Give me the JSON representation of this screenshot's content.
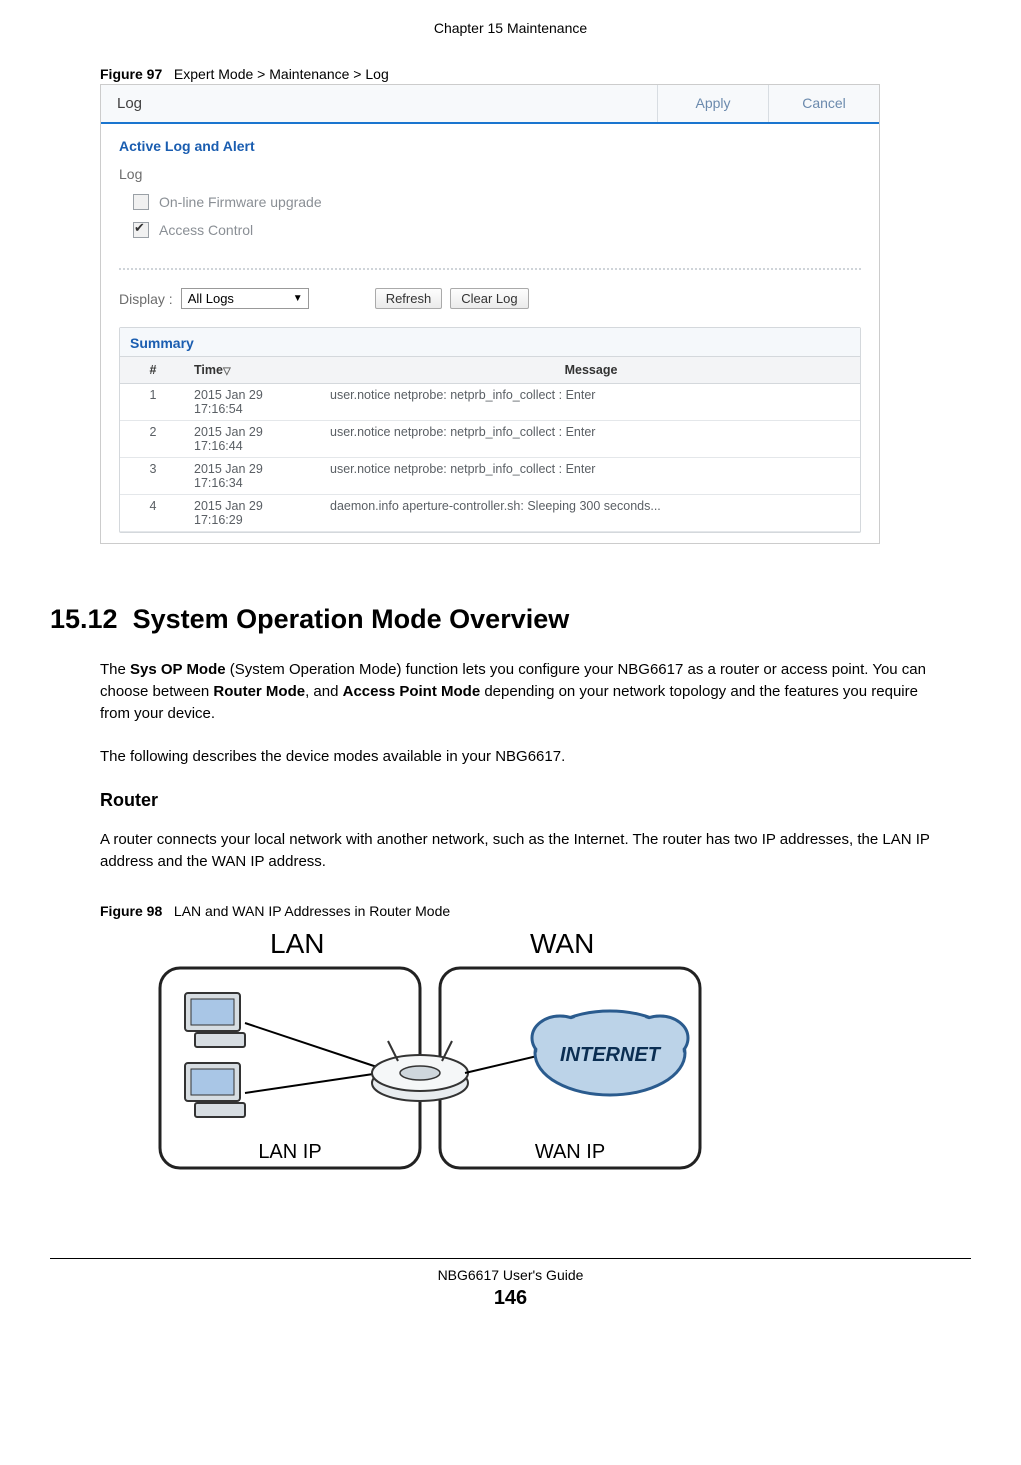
{
  "chapter_header": "Chapter 15 Maintenance",
  "figure97": {
    "label": "Figure 97",
    "caption": "Expert Mode > Maintenance > Log"
  },
  "screenshot": {
    "title": "Log",
    "apply": "Apply",
    "cancel": "Cancel",
    "section_title": "Active Log and Alert",
    "log_label": "Log",
    "check1": {
      "label": "On-line Firmware upgrade",
      "checked": false
    },
    "check2": {
      "label": "Access Control",
      "checked": true
    },
    "display_label": "Display :",
    "select_value": "All Logs",
    "refresh": "Refresh",
    "clear_log": "Clear Log",
    "summary_label": "Summary",
    "columns": {
      "num": "#",
      "time": "Time",
      "msg": "Message"
    },
    "rows": [
      {
        "num": "1",
        "time": "2015 Jan 29 17:16:54",
        "msg": "user.notice netprobe: netprb_info_collect : Enter"
      },
      {
        "num": "2",
        "time": "2015 Jan 29 17:16:44",
        "msg": "user.notice netprobe: netprb_info_collect : Enter"
      },
      {
        "num": "3",
        "time": "2015 Jan 29 17:16:34",
        "msg": "user.notice netprobe: netprb_info_collect : Enter"
      },
      {
        "num": "4",
        "time": "2015 Jan 29 17:16:29",
        "msg": "daemon.info aperture-controller.sh: Sleeping 300 seconds..."
      }
    ]
  },
  "section": {
    "number": "15.12",
    "title": "System Operation Mode Overview"
  },
  "para1": {
    "lead": "The ",
    "b1": "Sys OP Mode",
    "mid1": " (System Operation Mode) function lets you configure your NBG6617 as a router or access point. You can choose between ",
    "b2": "Router Mode",
    "mid2": ", and ",
    "b3": "Access Point Mode",
    "tail": " depending on your network topology and the features you require from your device."
  },
  "para2": "The following describes the device modes available in your NBG6617.",
  "subheading_router": "Router",
  "para3": "A router connects your local network with another network, such as the Internet. The router has two IP addresses, the LAN IP address and the WAN IP address.",
  "figure98": {
    "label": "Figure 98",
    "caption": "LAN and WAN IP Addresses in Router Mode"
  },
  "diagram": {
    "lan_title": "LAN",
    "wan_title": "WAN",
    "lan_ip": "LAN IP",
    "wan_ip": "WAN IP",
    "internet": "INTERNET"
  },
  "footer_text": "NBG6617 User's Guide",
  "page_number": "146",
  "colors": {
    "header_rule": "#1a75cf",
    "link_blue": "#1a5db0",
    "grey_text": "#6d6d6d",
    "border": "#d4d8dc"
  }
}
